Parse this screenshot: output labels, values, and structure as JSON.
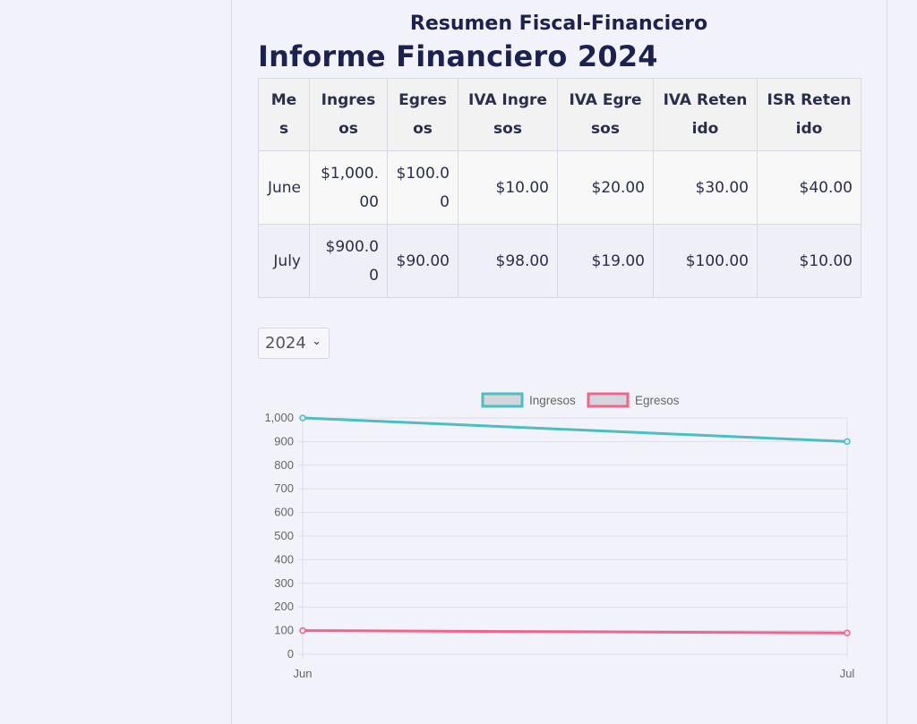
{
  "header": {
    "subtitle": "Resumen Fiscal-Financiero",
    "title": "Informe Financiero 2024"
  },
  "table": {
    "columns": [
      "Mes",
      "Ingresos",
      "Egresos",
      "IVA Ingresos",
      "IVA Egresos",
      "IVA Retenido",
      "ISR Retenido"
    ],
    "rows": [
      [
        "June",
        "$1,000.00",
        "$100.00",
        "$10.00",
        "$20.00",
        "$30.00",
        "$40.00"
      ],
      [
        "July",
        "$900.00",
        "$90.00",
        "$98.00",
        "$19.00",
        "$100.00",
        "$10.00"
      ]
    ]
  },
  "year_select": {
    "value": "2024"
  },
  "colors": {
    "ingresos": "#4bbfc0",
    "egresos": "#f0668a",
    "grid": "#dedee8",
    "axis_text": "#666666"
  },
  "chart_data": {
    "type": "line",
    "categories": [
      "Jun",
      "Jul"
    ],
    "series": [
      {
        "name": "Ingresos",
        "values": [
          1000,
          900
        ]
      },
      {
        "name": "Egresos",
        "values": [
          100,
          90
        ]
      }
    ],
    "ylim": [
      0,
      1000
    ],
    "yticks": [
      "0",
      "100",
      "200",
      "300",
      "400",
      "500",
      "600",
      "700",
      "800",
      "900",
      "1,000"
    ],
    "grid": true,
    "legend": "top"
  }
}
